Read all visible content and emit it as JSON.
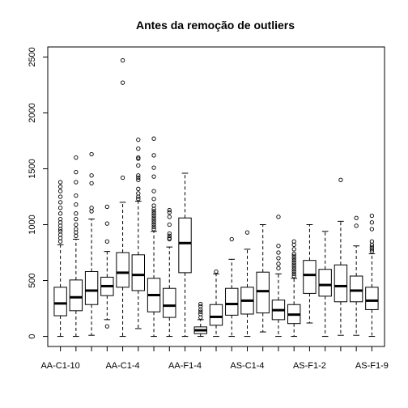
{
  "chart_data": {
    "type": "boxplot",
    "title": "Antes da remoção de outliers",
    "xlabel": "",
    "ylabel": "",
    "ylim": [
      -90,
      2590
    ],
    "yticks": [
      0,
      500,
      1000,
      1500,
      2000,
      2500
    ],
    "grid": false,
    "legend": "none",
    "categories": [
      "AA-C1-10",
      "",
      "",
      "",
      "AA-C1-4",
      "",
      "",
      "",
      "AA-F1-4",
      "",
      "",
      "",
      "AS-C1-4",
      "",
      "",
      "",
      "AS-F1-2",
      "",
      "",
      "",
      "AS-F1-9"
    ],
    "tick_labels": [
      "AA-C1-10",
      "AA-C1-4",
      "AA-F1-4",
      "AS-C1-4",
      "AS-F1-2",
      "AS-F1-9"
    ],
    "boxes": [
      {
        "min": 0,
        "q1": 185,
        "median": 295,
        "q3": 440,
        "max": 820,
        "outliers": [
          850,
          880,
          910,
          940,
          960,
          990,
          1020,
          1050,
          1100,
          1150,
          1200,
          1250,
          1300,
          1340,
          1380
        ]
      },
      {
        "min": 0,
        "q1": 230,
        "median": 350,
        "q3": 505,
        "max": 870,
        "outliers": [
          900,
          930,
          960,
          1000,
          1050,
          1100,
          1180,
          1260,
          1380,
          1470,
          1600
        ]
      },
      {
        "min": 10,
        "q1": 285,
        "median": 410,
        "q3": 580,
        "max": 1050,
        "outliers": [
          1120,
          1150,
          1370,
          1440,
          1630
        ]
      },
      {
        "min": 150,
        "q1": 365,
        "median": 450,
        "q3": 530,
        "max": 760,
        "outliers": [
          90,
          850,
          1010,
          1160
        ]
      },
      {
        "min": 0,
        "q1": 440,
        "median": 570,
        "q3": 750,
        "max": 1200,
        "outliers": [
          1420,
          2270,
          2470
        ]
      },
      {
        "min": 70,
        "q1": 410,
        "median": 550,
        "q3": 730,
        "max": 1210,
        "outliers": [
          1230,
          1250,
          1280,
          1320,
          1400,
          1420,
          1440,
          1530,
          1590,
          1600,
          1680,
          1760
        ]
      },
      {
        "min": 0,
        "q1": 220,
        "median": 370,
        "q3": 520,
        "max": 940,
        "outliers": [
          960,
          980,
          1000,
          1020,
          1040,
          1060,
          1080,
          1100,
          1120,
          1140,
          1170,
          1230,
          1300,
          1430,
          1510,
          1620,
          1770
        ]
      },
      {
        "min": 0,
        "q1": 170,
        "median": 275,
        "q3": 430,
        "max": 800,
        "outliers": [
          870,
          880,
          900,
          920,
          1000,
          1070,
          1110,
          1130
        ]
      },
      {
        "min": 0,
        "q1": 570,
        "median": 835,
        "q3": 1060,
        "max": 1460,
        "outliers": []
      },
      {
        "min": 0,
        "q1": 25,
        "median": 55,
        "q3": 85,
        "max": 150,
        "outliers": [
          170,
          200,
          220,
          240,
          270,
          290
        ]
      },
      {
        "min": 0,
        "q1": 100,
        "median": 175,
        "q3": 285,
        "max": 560,
        "outliers": [
          580
        ]
      },
      {
        "min": 0,
        "q1": 190,
        "median": 290,
        "q3": 430,
        "max": 690,
        "outliers": [
          870
        ]
      },
      {
        "min": 0,
        "q1": 200,
        "median": 320,
        "q3": 440,
        "max": 780,
        "outliers": [
          930
        ]
      },
      {
        "min": 40,
        "q1": 210,
        "median": 405,
        "q3": 575,
        "max": 1000,
        "outliers": []
      },
      {
        "min": 0,
        "q1": 150,
        "median": 235,
        "q3": 325,
        "max": 560,
        "outliers": [
          610,
          650,
          700,
          750,
          810,
          1070
        ]
      },
      {
        "min": 0,
        "q1": 115,
        "median": 195,
        "q3": 285,
        "max": 520,
        "outliers": [
          540,
          560,
          580,
          600,
          620,
          640,
          660,
          680,
          700,
          720,
          740,
          780,
          820,
          850
        ]
      },
      {
        "min": 120,
        "q1": 385,
        "median": 550,
        "q3": 680,
        "max": 1000,
        "outliers": []
      },
      {
        "min": 0,
        "q1": 360,
        "median": 460,
        "q3": 600,
        "max": 940,
        "outliers": []
      },
      {
        "min": 10,
        "q1": 310,
        "median": 450,
        "q3": 640,
        "max": 1030,
        "outliers": [
          1400
        ]
      },
      {
        "min": 10,
        "q1": 310,
        "median": 410,
        "q3": 540,
        "max": 810,
        "outliers": [
          990,
          1060
        ]
      },
      {
        "min": 0,
        "q1": 240,
        "median": 320,
        "q3": 440,
        "max": 740,
        "outliers": [
          760,
          780,
          800,
          820,
          850,
          960,
          1020,
          1080
        ]
      }
    ]
  }
}
